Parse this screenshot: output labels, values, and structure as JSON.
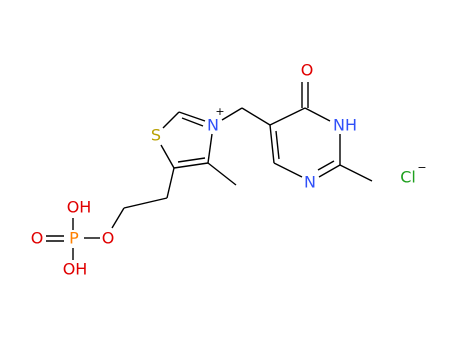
{
  "atoms": [
    {
      "label": "S"
    },
    {
      "label": "N",
      "charge": "+"
    },
    {
      "label": "O"
    },
    {
      "label": "NH"
    },
    {
      "label": "N"
    },
    {
      "label": "Cl",
      "charge": "−"
    },
    {
      "label": "OH"
    },
    {
      "label": "O"
    },
    {
      "label": "P"
    },
    {
      "label": "O"
    },
    {
      "label": "OH"
    }
  ]
}
